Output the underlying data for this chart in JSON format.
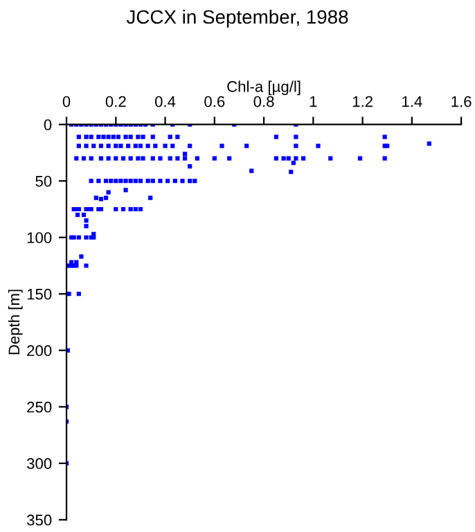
{
  "chart_data": {
    "type": "scatter",
    "title": "JCCX in September, 1988",
    "xlabel": "Chl-a [µg/l]",
    "ylabel": "Depth [m]",
    "xlim": [
      0,
      1.6
    ],
    "xticks": [
      0,
      0.2,
      0.4,
      0.6,
      0.8,
      1,
      1.2,
      1.4,
      1.6
    ],
    "ylim": [
      350,
      0
    ],
    "yticks": [
      0,
      50,
      100,
      150,
      200,
      250,
      300,
      350
    ],
    "marker": "square",
    "grid": false,
    "legend": false,
    "series": [
      {
        "color": "#0000ff",
        "x": [
          0.02,
          0.04,
          0.06,
          0.08,
          0.1,
          0.12,
          0.14,
          0.16,
          0.18,
          0.2,
          0.22,
          0.24,
          0.26,
          0.28,
          0.3,
          0.32,
          0.35,
          0.43,
          0.5,
          0.68,
          0.93,
          0.05,
          0.08,
          0.1,
          0.13,
          0.15,
          0.17,
          0.19,
          0.21,
          0.24,
          0.26,
          0.29,
          0.31,
          0.35,
          0.42,
          0.45,
          0.85,
          0.93,
          1.29,
          0.05,
          0.08,
          0.11,
          0.14,
          0.17,
          0.2,
          0.22,
          0.25,
          0.28,
          0.3,
          0.33,
          0.36,
          0.4,
          0.43,
          0.5,
          0.63,
          0.73,
          0.93,
          1.02,
          1.29,
          1.3,
          1.47,
          0.04,
          0.07,
          0.1,
          0.14,
          0.17,
          0.2,
          0.23,
          0.26,
          0.29,
          0.31,
          0.35,
          0.38,
          0.42,
          0.45,
          0.48,
          0.53,
          0.6,
          0.66,
          0.85,
          0.88,
          0.9,
          0.93,
          0.96,
          1.07,
          1.19,
          1.29,
          0.48,
          0.92,
          0.91,
          0.5,
          0.75,
          0.1,
          0.13,
          0.16,
          0.18,
          0.2,
          0.22,
          0.24,
          0.26,
          0.28,
          0.3,
          0.33,
          0.35,
          0.38,
          0.41,
          0.44,
          0.47,
          0.5,
          0.52,
          0.24,
          0.17,
          0.12,
          0.14,
          0.16,
          0.34,
          0.03,
          0.04,
          0.05,
          0.08,
          0.09,
          0.1,
          0.13,
          0.14,
          0.2,
          0.23,
          0.26,
          0.28,
          0.3,
          0.07,
          0.045,
          0.08,
          0.08,
          0.11,
          0.02,
          0.03,
          0.05,
          0.08,
          0.1,
          0.11,
          0.06,
          0.0,
          0.01,
          0.02,
          0.03,
          0.04,
          0.08,
          0.02,
          0.04,
          0.0,
          0.01,
          0.05,
          0.005,
          0.0,
          0.0,
          0.0
        ],
        "values": [
          0,
          0,
          0,
          0,
          0,
          0,
          0,
          0,
          0,
          0,
          0,
          0,
          0,
          0,
          0,
          0,
          0,
          0,
          0,
          0,
          0,
          11,
          11,
          11,
          11,
          11,
          11,
          11,
          11,
          11,
          11,
          11,
          11,
          11,
          11,
          11,
          11,
          11,
          11,
          19,
          19,
          19,
          19,
          19,
          19,
          19,
          19,
          19,
          19,
          19,
          19,
          19,
          19,
          19,
          19,
          19,
          19,
          19,
          19,
          19,
          17,
          30,
          30,
          30,
          30,
          30,
          30,
          30,
          30,
          30,
          30,
          30,
          30,
          30,
          30,
          30,
          30,
          30,
          30,
          30,
          30,
          30,
          30,
          30,
          30,
          30,
          30,
          26,
          34,
          42,
          37,
          41,
          50,
          50,
          50,
          50,
          50,
          50,
          50,
          50,
          50,
          50,
          50,
          50,
          50,
          50,
          50,
          50,
          50,
          50,
          58,
          60,
          65,
          66,
          65,
          65,
          75,
          75,
          75,
          75,
          75,
          75,
          75,
          75,
          75,
          75,
          75,
          75,
          75,
          80,
          80,
          85,
          90,
          97,
          100,
          100,
          100,
          100,
          100,
          100,
          117,
          125,
          125,
          125,
          125,
          125,
          125,
          122,
          122,
          150,
          150,
          150,
          200,
          250,
          263,
          300
        ]
      }
    ]
  }
}
